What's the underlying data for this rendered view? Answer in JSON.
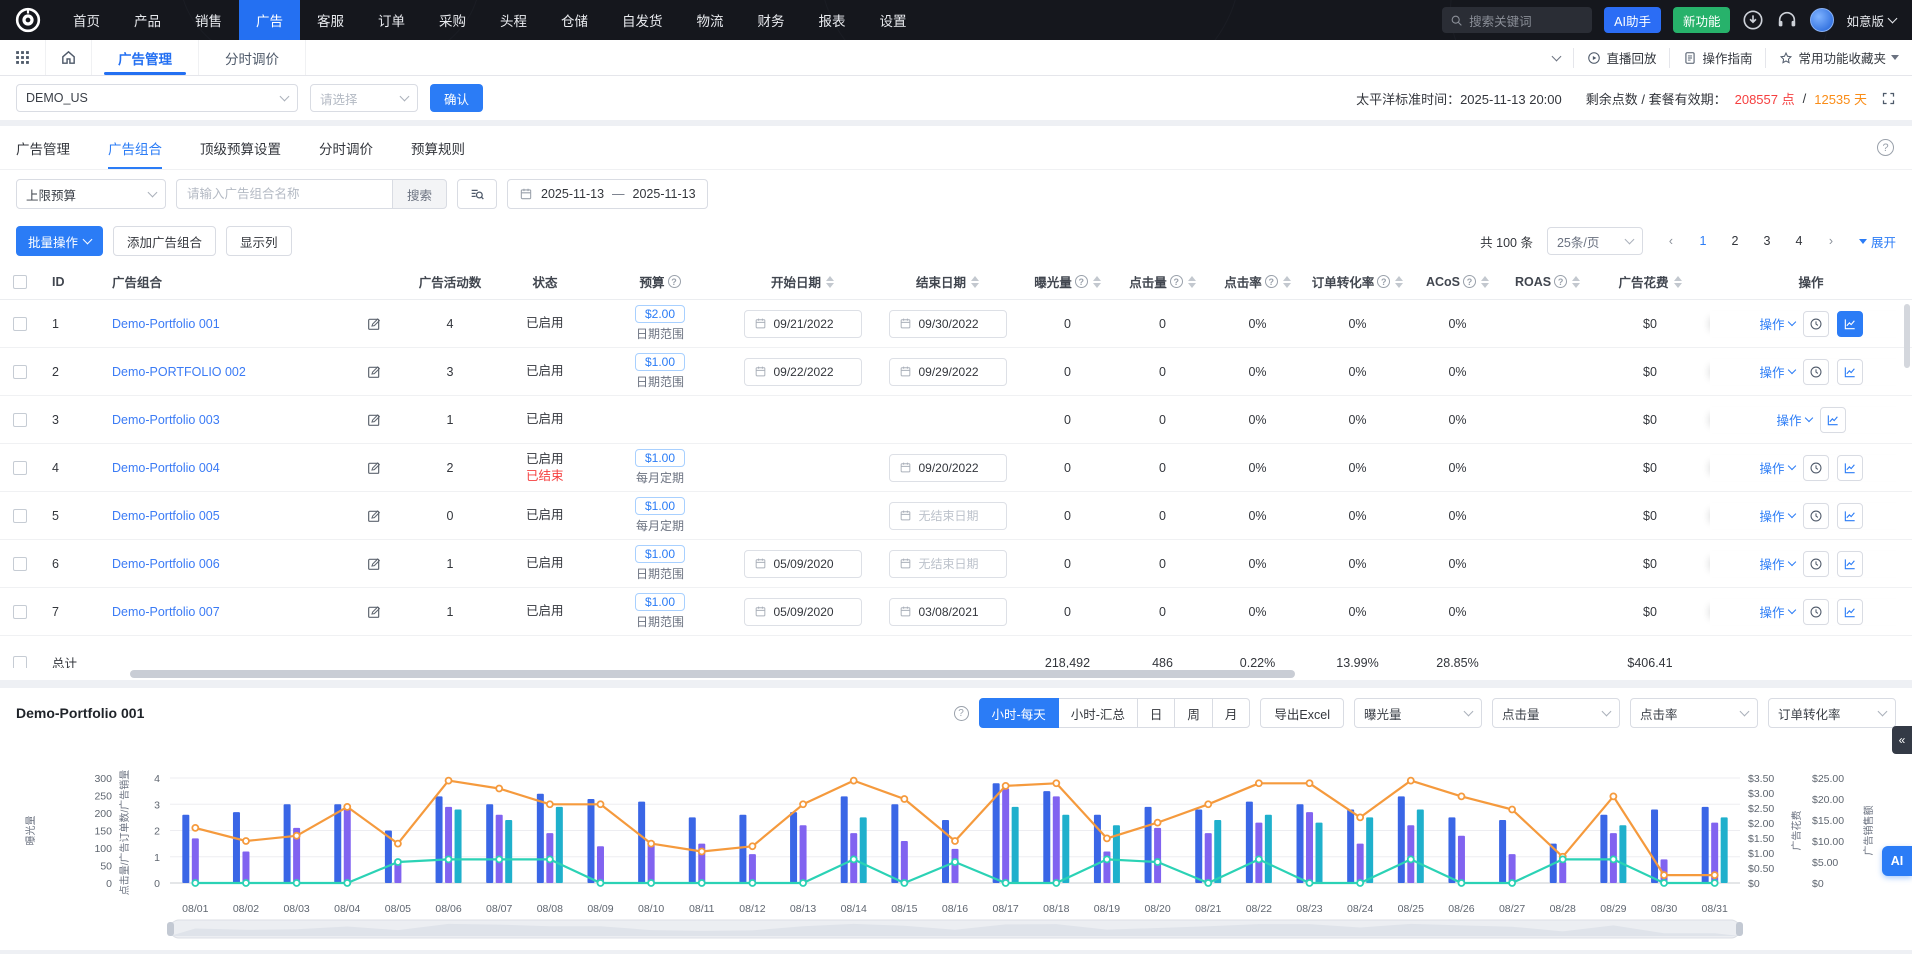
{
  "topnav": {
    "menu": [
      "首页",
      "产品",
      "销售",
      "广告",
      "客服",
      "订单",
      "采购",
      "头程",
      "仓储",
      "自发货",
      "物流",
      "财务",
      "报表",
      "设置"
    ],
    "active": "广告",
    "search_placeholder": "搜索关键词",
    "ai_button": "AI助手",
    "new_feature_button": "新功能",
    "edition": "如意版"
  },
  "subnav": {
    "tabs": [
      "广告管理",
      "分时调价"
    ],
    "active": "广告管理",
    "links": [
      "直播回放",
      "操作指南",
      "常用功能收藏夹"
    ]
  },
  "filterbar": {
    "shop": "DEMO_US",
    "select_placeholder": "请选择",
    "confirm": "确认",
    "timezone_text": "太平洋标准时间：2025-11-13 20:00",
    "points_label": "剩余点数 / 套餐有效期：",
    "points": "208557 点",
    "separator": " / ",
    "days": "12535 天"
  },
  "page_tabs": {
    "items": [
      "广告管理",
      "广告组合",
      "顶级预算设置",
      "分时调价",
      "预算规则"
    ],
    "active": "广告组合"
  },
  "searchrow": {
    "budget_filter": "上限预算",
    "name_placeholder": "请输入广告组合名称",
    "search": "搜索",
    "date_start": "2025-11-13",
    "date_separator": "—",
    "date_end": "2025-11-13"
  },
  "toolbar": {
    "batch": "批量操作",
    "add": "添加广告组合",
    "columns": "显示列",
    "total_text": "共 100 条",
    "page_size": "25条/页",
    "pages": [
      "1",
      "2",
      "3",
      "4"
    ],
    "current_page": "1",
    "expand": "展开"
  },
  "table": {
    "columns": [
      {
        "label": "",
        "type": "checkbox"
      },
      {
        "label": "ID"
      },
      {
        "label": "广告组合"
      },
      {
        "label": "广告活动数"
      },
      {
        "label": "状态"
      },
      {
        "label": "预算",
        "help": true
      },
      {
        "label": "开始日期",
        "sort": true
      },
      {
        "label": "结束日期",
        "sort": true
      },
      {
        "label": "曝光量",
        "help": true,
        "sort": true
      },
      {
        "label": "点击量",
        "help": true,
        "sort": true
      },
      {
        "label": "点击率",
        "help": true,
        "sort": true
      },
      {
        "label": "订单转化率",
        "help": true,
        "sort": true
      },
      {
        "label": "ACoS",
        "help": true,
        "sort": true
      },
      {
        "label": "ROAS",
        "help": true,
        "sort": true
      },
      {
        "label": "广告花费",
        "sort": true
      },
      {
        "label": "操作"
      }
    ],
    "totals": {
      "label": "总计",
      "imp": "218,492",
      "clk": "486",
      "ctr": "0.22%",
      "cvr": "13.99%",
      "acos": "28.85%",
      "roas": "",
      "spend": "$406.41"
    },
    "rows": [
      {
        "id": "1",
        "name": "Demo-Portfolio 001",
        "campaigns": "4",
        "status": "已启用",
        "status_extra": "",
        "budget": "$2.00",
        "budget_type": "日期范围",
        "start": "09/21/2022",
        "end": "09/30/2022",
        "end_placeholder": false,
        "imp": "0",
        "clk": "0",
        "ctr": "0%",
        "cvr": "0%",
        "acos": "0%",
        "roas": "",
        "spend": "$0",
        "clock": true,
        "chart_active": true
      },
      {
        "id": "2",
        "name": "Demo-PORTFOLIO 002",
        "campaigns": "3",
        "status": "已启用",
        "status_extra": "",
        "budget": "$1.00",
        "budget_type": "日期范围",
        "start": "09/22/2022",
        "end": "09/29/2022",
        "end_placeholder": false,
        "imp": "0",
        "clk": "0",
        "ctr": "0%",
        "cvr": "0%",
        "acos": "0%",
        "roas": "",
        "spend": "$0",
        "clock": true,
        "chart_active": false
      },
      {
        "id": "3",
        "name": "Demo-Portfolio 003",
        "campaigns": "1",
        "status": "已启用",
        "status_extra": "",
        "budget": "",
        "budget_type": "",
        "start": "",
        "end": "",
        "end_placeholder": false,
        "imp": "0",
        "clk": "0",
        "ctr": "0%",
        "cvr": "0%",
        "acos": "0%",
        "roas": "",
        "spend": "$0",
        "clock": false,
        "chart_active": false
      },
      {
        "id": "4",
        "name": "Demo-Portfolio 004",
        "campaigns": "2",
        "status": "已启用",
        "status_extra": "已结束",
        "budget": "$1.00",
        "budget_type": "每月定期",
        "start": "",
        "end": "09/20/2022",
        "end_placeholder": false,
        "imp": "0",
        "clk": "0",
        "ctr": "0%",
        "cvr": "0%",
        "acos": "0%",
        "roas": "",
        "spend": "$0",
        "clock": true,
        "chart_active": false
      },
      {
        "id": "5",
        "name": "Demo-Portfolio 005",
        "campaigns": "0",
        "status": "已启用",
        "status_extra": "",
        "budget": "$1.00",
        "budget_type": "每月定期",
        "start": "",
        "end": "无结束日期",
        "end_placeholder": true,
        "imp": "0",
        "clk": "0",
        "ctr": "0%",
        "cvr": "0%",
        "acos": "0%",
        "roas": "",
        "spend": "$0",
        "clock": true,
        "chart_active": false
      },
      {
        "id": "6",
        "name": "Demo-Portfolio 006",
        "campaigns": "1",
        "status": "已启用",
        "status_extra": "",
        "budget": "$1.00",
        "budget_type": "日期范围",
        "start": "05/09/2020",
        "end": "无结束日期",
        "end_placeholder": true,
        "imp": "0",
        "clk": "0",
        "ctr": "0%",
        "cvr": "0%",
        "acos": "0%",
        "roas": "",
        "spend": "$0",
        "clock": true,
        "chart_active": false
      },
      {
        "id": "7",
        "name": "Demo-Portfolio 007",
        "campaigns": "1",
        "status": "已启用",
        "status_extra": "",
        "budget": "$1.00",
        "budget_type": "日期范围",
        "start": "05/09/2020",
        "end": "03/08/2021",
        "end_placeholder": false,
        "imp": "0",
        "clk": "0",
        "ctr": "0%",
        "cvr": "0%",
        "acos": "0%",
        "roas": "",
        "spend": "$0",
        "clock": true,
        "chart_active": false
      }
    ]
  },
  "chart_panel": {
    "title": "Demo-Portfolio 001",
    "range_tabs": [
      "小时-每天",
      "小时-汇总",
      "日",
      "周",
      "月"
    ],
    "active_range": "小时-每天",
    "export_label": "导出Excel",
    "metric_selects": [
      "曝光量",
      "点击量",
      "点击率",
      "订单转化率"
    ],
    "ai_label": "AI"
  },
  "chart_data": {
    "type": "bar",
    "note": "combo bar+line, dual y-axes both sides",
    "x": [
      "08/01",
      "08/02",
      "08/03",
      "08/04",
      "08/05",
      "08/06",
      "08/07",
      "08/08",
      "08/09",
      "08/10",
      "08/11",
      "08/12",
      "08/13",
      "08/14",
      "08/15",
      "08/16",
      "08/17",
      "08/18",
      "08/19",
      "08/20",
      "08/21",
      "08/22",
      "08/23",
      "08/24",
      "08/25",
      "08/26",
      "08/27",
      "08/28",
      "08/29",
      "08/30",
      "08/31"
    ],
    "axes": {
      "left_outer": {
        "name": "曝光量",
        "ticks": [
          "300",
          "250",
          "200",
          "150",
          "100",
          "50",
          "0"
        ]
      },
      "left_inner": {
        "name": "点击量/广告订单数/广告销量",
        "ticks": [
          "4",
          "3",
          "2",
          "1",
          "0"
        ],
        "max": 4
      },
      "right_inner": {
        "name": "广告花费",
        "ticks": [
          "$3.50",
          "$3.00",
          "$2.50",
          "$2.00",
          "$1.50",
          "$1.00",
          "$0.50",
          "$0"
        ]
      },
      "right_outer": {
        "name": "广告销售额",
        "ticks": [
          "$25.00",
          "$20.00",
          "$15.00",
          "$10.00",
          "$5.00",
          "$0"
        ]
      }
    },
    "series": [
      {
        "name": "曝光量",
        "kind": "bar",
        "color": "#3a66e6",
        "values": [
          2.6,
          2.7,
          3.0,
          3.0,
          2.0,
          3.3,
          3.0,
          3.4,
          3.2,
          3.1,
          2.5,
          2.6,
          2.7,
          3.3,
          3.0,
          2.4,
          3.8,
          3.5,
          2.6,
          2.9,
          2.8,
          3.1,
          3.0,
          2.8,
          3.3,
          2.5,
          2.4,
          1.5,
          2.6,
          2.8,
          2.9
        ]
      },
      {
        "name": "点击量",
        "kind": "bar",
        "color": "#8163f0",
        "values": [
          1.7,
          1.2,
          2.1,
          2.8,
          0.9,
          2.9,
          2.6,
          1.9,
          1.4,
          1.6,
          1.5,
          1.1,
          2.2,
          1.9,
          1.6,
          1.3,
          3.6,
          3.3,
          1.2,
          2.1,
          1.9,
          2.3,
          2.7,
          1.5,
          2.2,
          1.8,
          1.1,
          0.8,
          1.9,
          0.9,
          2.3
        ]
      },
      {
        "name": "广告订单数",
        "kind": "bar",
        "color": "#1fb0cc",
        "values": [
          0,
          0,
          0,
          0,
          0,
          2.8,
          2.4,
          2.9,
          0,
          0,
          0,
          0,
          0,
          2.5,
          0,
          0,
          2.9,
          2.6,
          2.2,
          0,
          2.4,
          2.6,
          2.3,
          2.5,
          2.8,
          0,
          0,
          0,
          2.2,
          0,
          2.5
        ]
      },
      {
        "name": "广告花费",
        "kind": "line",
        "color": "#f59a3d",
        "values": [
          2.1,
          1.6,
          1.8,
          2.9,
          1.5,
          3.9,
          3.6,
          3.0,
          3.0,
          1.5,
          1.2,
          1.4,
          3.0,
          3.9,
          3.2,
          1.6,
          3.7,
          3.8,
          1.7,
          2.3,
          3.0,
          3.8,
          3.8,
          2.5,
          3.9,
          3.3,
          2.8,
          1.0,
          3.3,
          0.3,
          0.3
        ]
      },
      {
        "name": "广告销量",
        "kind": "line",
        "color": "#2bd2b5",
        "values": [
          0,
          0,
          0,
          0,
          0.8,
          0.9,
          0.9,
          0.9,
          0,
          0,
          0,
          0,
          0,
          0.9,
          0,
          0.8,
          0,
          0,
          0.9,
          0.8,
          0,
          0.9,
          0,
          0,
          0.9,
          0,
          0,
          0.9,
          0.9,
          0,
          0
        ]
      }
    ],
    "grid": true
  }
}
